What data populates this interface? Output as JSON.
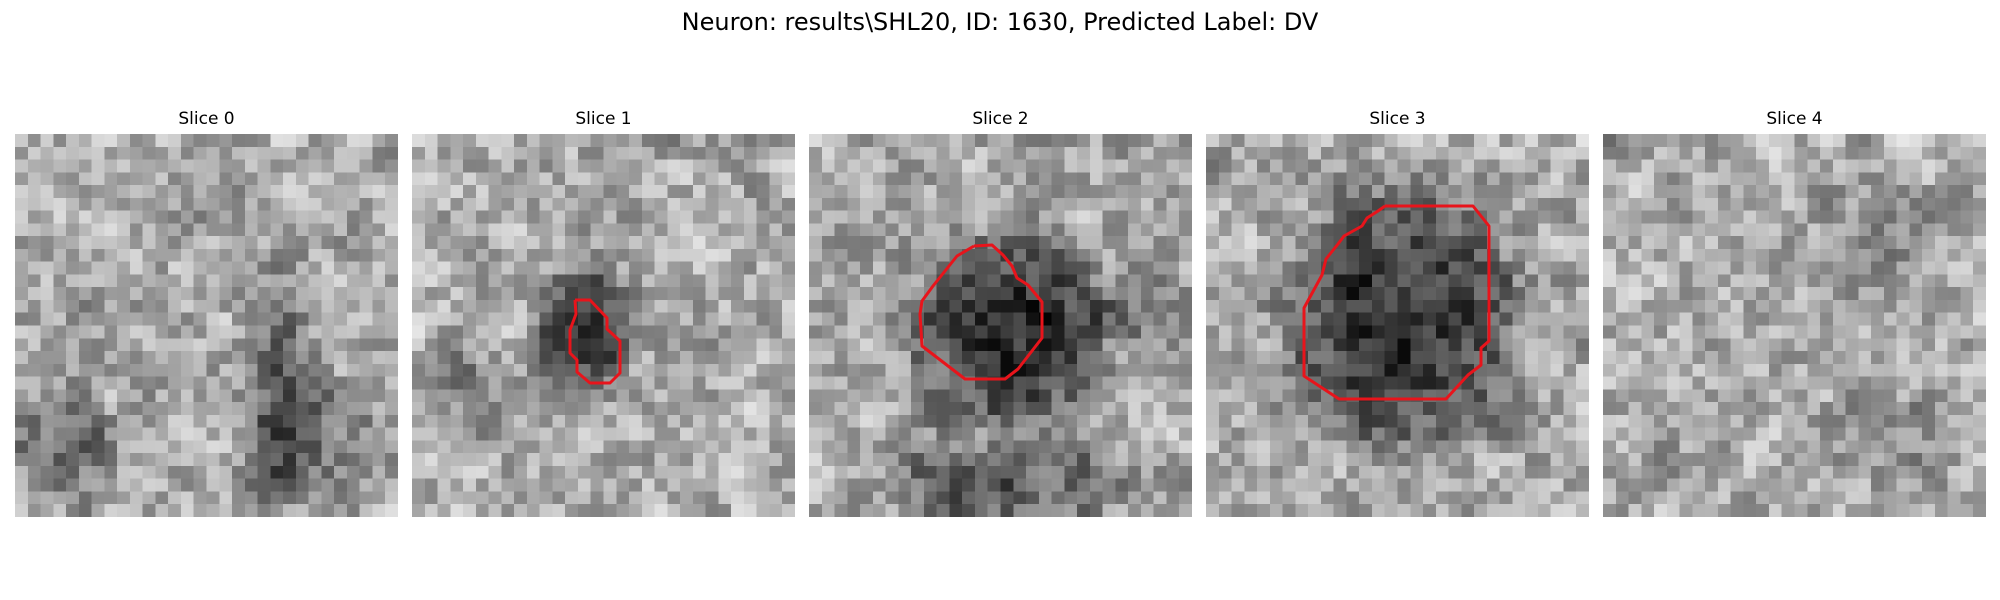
{
  "figure": {
    "title": "Neuron: results\\SHL20, ID: 1630, Predicted Label: DV"
  },
  "outline_color": "#e8141b",
  "panels": [
    {
      "label": "Slice 0",
      "has_contour": false
    },
    {
      "label": "Slice 1",
      "has_contour": true
    },
    {
      "label": "Slice 2",
      "has_contour": true
    },
    {
      "label": "Slice 3",
      "has_contour": true
    },
    {
      "label": "Slice 4",
      "has_contour": false
    }
  ]
}
